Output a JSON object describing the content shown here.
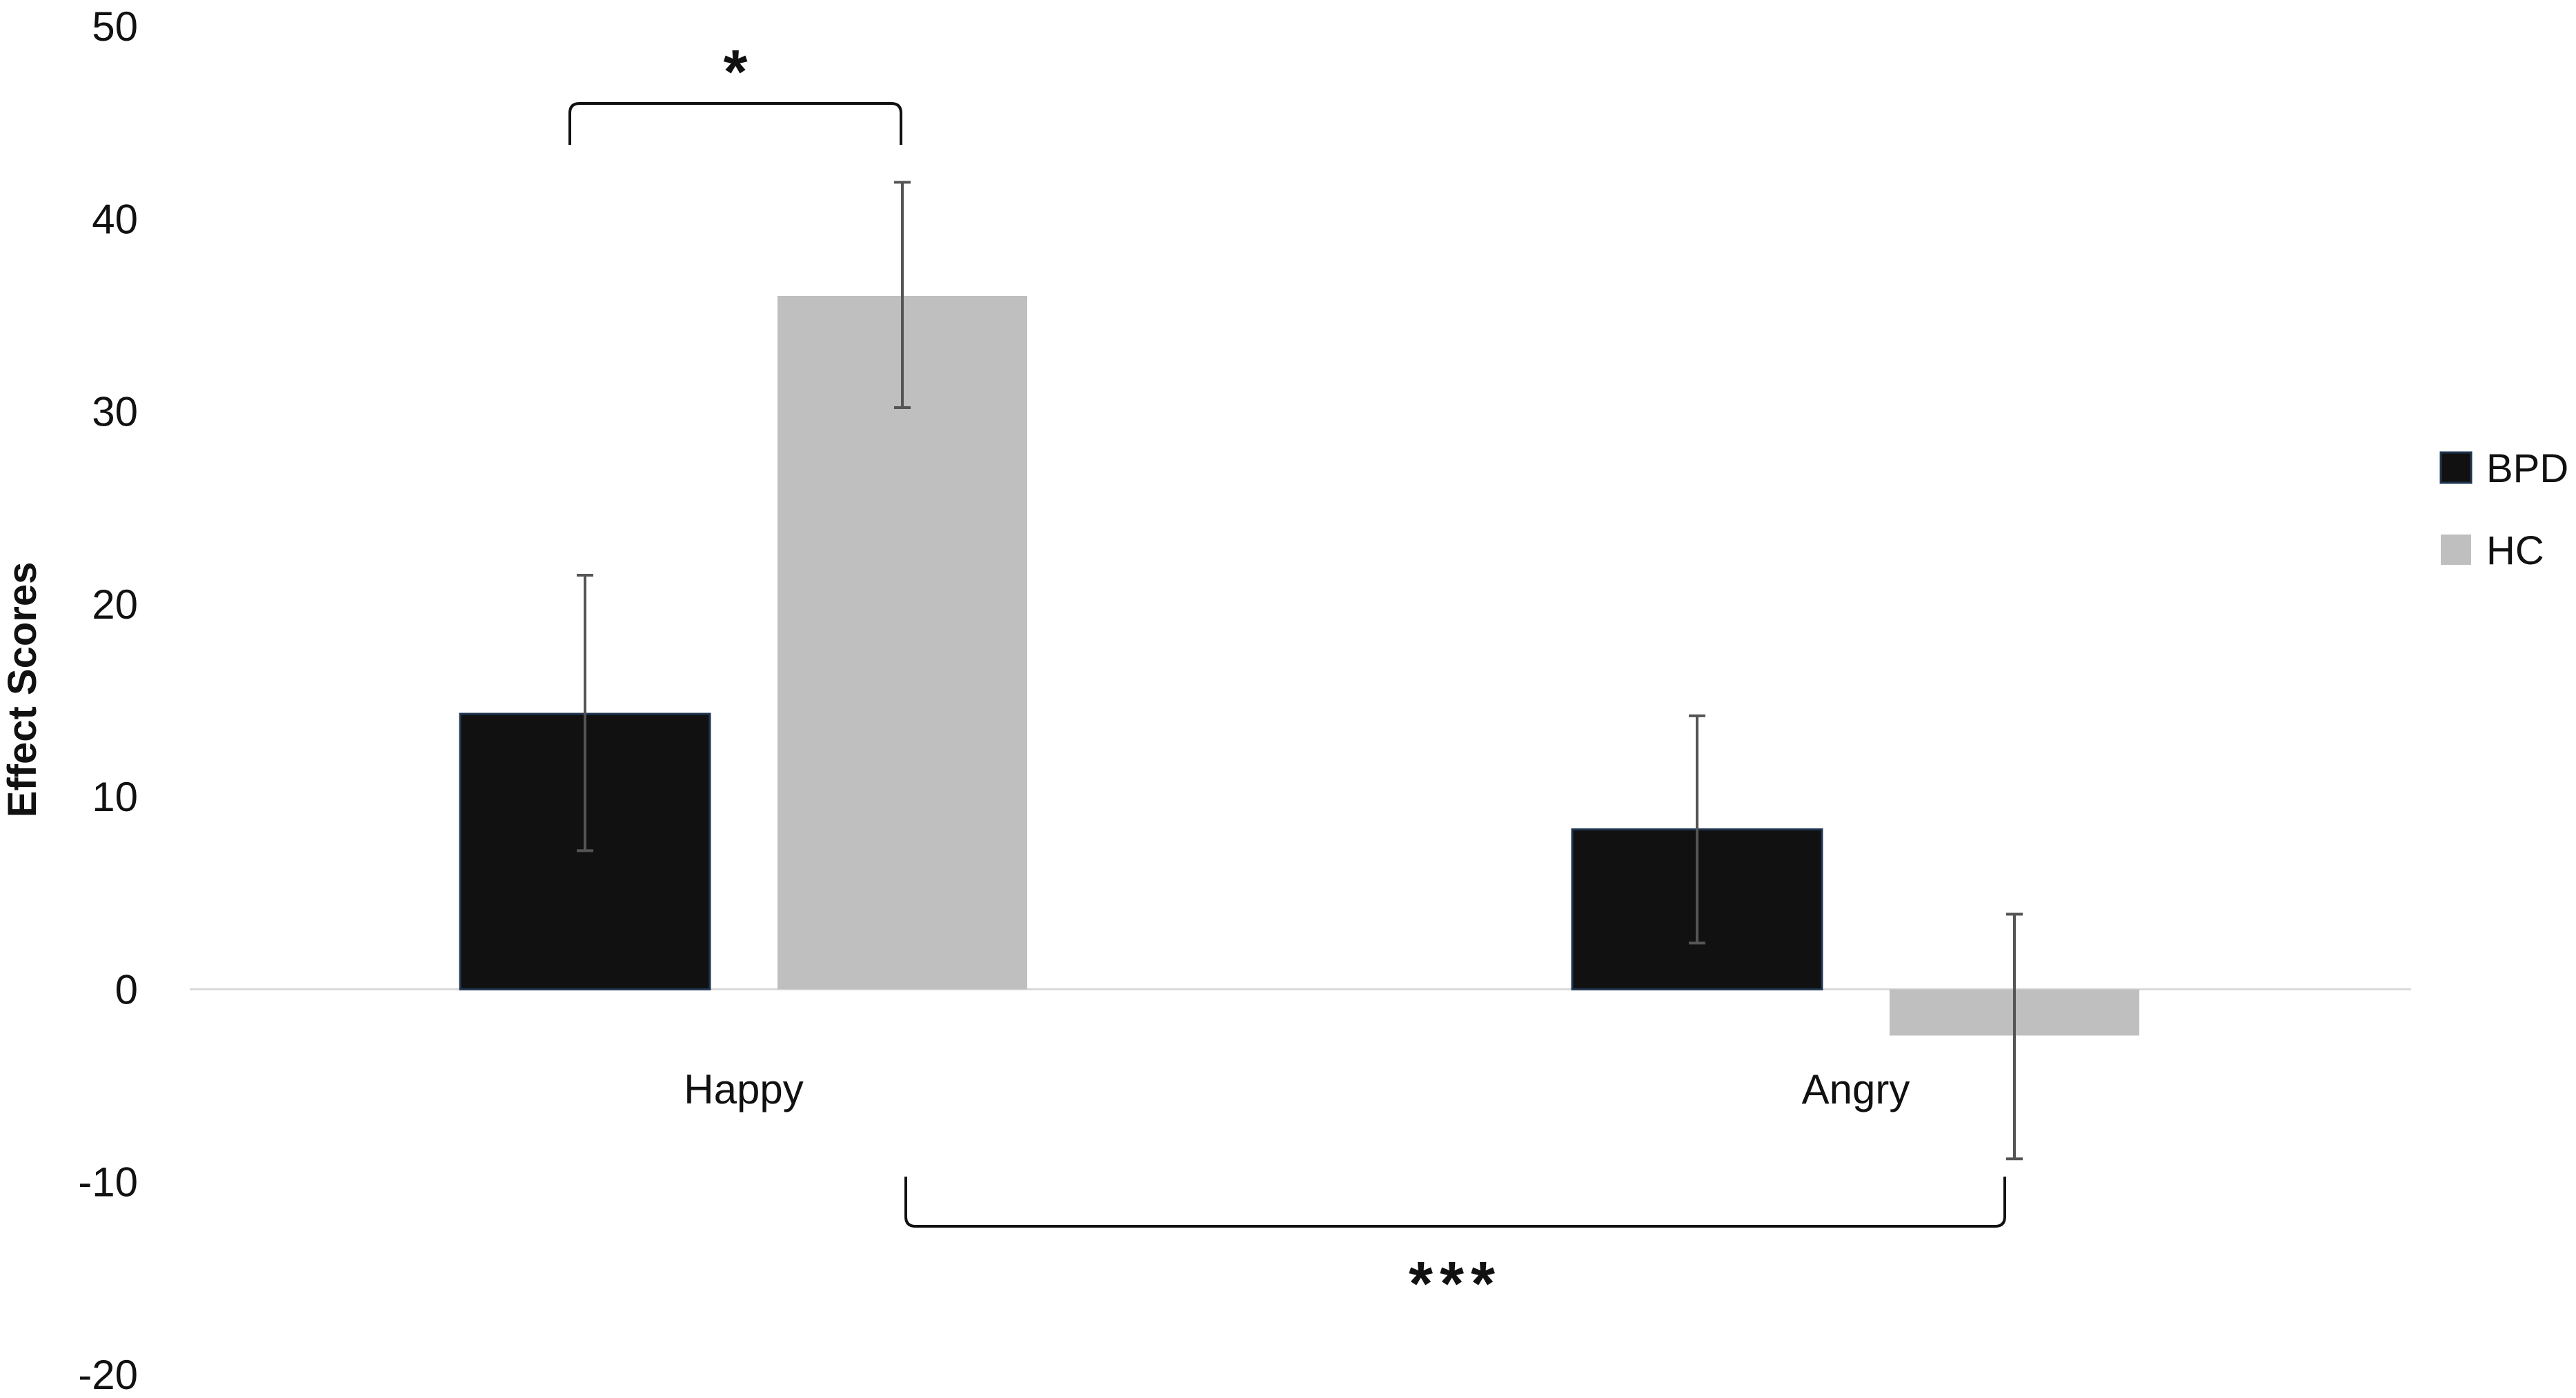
{
  "chart_data": {
    "type": "bar",
    "title": "",
    "xlabel": "",
    "ylabel": "Effect Scores",
    "ylim": [
      -20,
      50
    ],
    "yticks": [
      "50",
      "40",
      "30",
      "20",
      "10",
      "0",
      "-10",
      "-20"
    ],
    "ytick_values": [
      50,
      40,
      30,
      20,
      10,
      0,
      -10,
      -20
    ],
    "grid": false,
    "legend_position": "right",
    "categories": [
      "Happy",
      "Angry"
    ],
    "series": [
      {
        "name": "BPD",
        "color": "#111111",
        "values": [
          14.3,
          8.3
        ],
        "error": [
          [
            7.2,
            21.5
          ],
          [
            2.4,
            14.2
          ]
        ]
      },
      {
        "name": "HC",
        "color": "#bfbfbf",
        "values": [
          36.0,
          -2.4
        ],
        "error": [
          [
            30.2,
            41.9
          ],
          [
            -8.8,
            3.9
          ]
        ]
      }
    ],
    "annotations": [
      {
        "label": "*",
        "between": "Happy BPD vs Happy HC",
        "position": "above"
      },
      {
        "label": "***",
        "between": "Happy HC vs Angry HC",
        "position": "below"
      }
    ]
  },
  "colors": {
    "axis": "#d9d9d9",
    "errorbar": "#555555",
    "bracket": "#111111",
    "text": "#111111"
  }
}
